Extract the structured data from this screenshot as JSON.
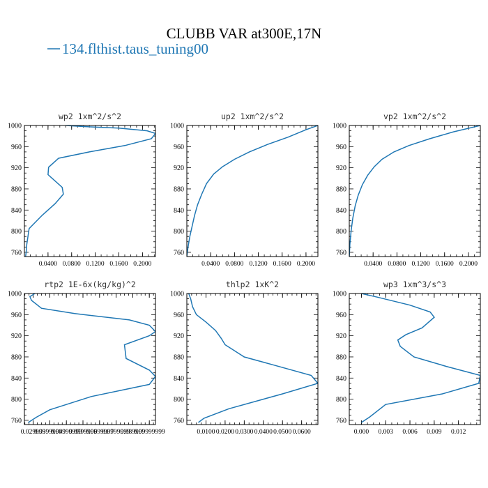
{
  "figure": {
    "title": "CLUBB VAR at300E,17N",
    "legend_label": "134.flthist.taus_tuning00",
    "line_color": "#1f77b4"
  },
  "chart_data": [
    {
      "type": "line",
      "title": "wp2  1xm^2/s^2",
      "xlim": [
        0.0,
        0.222
      ],
      "ylim": [
        1000,
        752
      ],
      "y_inverted": true,
      "yticks": [
        760,
        800,
        840,
        880,
        920,
        960,
        1000
      ],
      "xticks": [
        0.04,
        0.08,
        0.12,
        0.16,
        0.2
      ],
      "xtick_labels": [
        "0.0400",
        "0.0800",
        "0.1200",
        "0.1600",
        "0.2000"
      ],
      "series": [
        {
          "x": [
            0.002,
            0.003,
            0.004,
            0.008,
            0.03,
            0.052,
            0.066,
            0.064,
            0.04,
            0.041,
            0.058,
            0.11,
            0.17,
            0.215,
            0.222,
            0.208,
            0.16,
            0.1,
            0.07
          ],
          "y": [
            752,
            760,
            775,
            805,
            830,
            852,
            870,
            883,
            907,
            921,
            938,
            950,
            962,
            975,
            985,
            990,
            995,
            998,
            1000
          ]
        }
      ]
    },
    {
      "type": "line",
      "title": "up2  1xm^2/s^2",
      "xlim": [
        0.0,
        0.22
      ],
      "ylim": [
        1000,
        752
      ],
      "y_inverted": true,
      "yticks": [
        760,
        800,
        840,
        880,
        920,
        960,
        1000
      ],
      "xticks": [
        0.04,
        0.08,
        0.12,
        0.16,
        0.2
      ],
      "xtick_labels": [
        "0.0400",
        "0.0800",
        "0.1200",
        "0.1600",
        "0.2000"
      ],
      "series": [
        {
          "x": [
            0.0,
            0.002,
            0.005,
            0.009,
            0.013,
            0.018,
            0.025,
            0.033,
            0.045,
            0.06,
            0.08,
            0.105,
            0.135,
            0.17,
            0.2,
            0.22
          ],
          "y": [
            752,
            770,
            790,
            810,
            830,
            850,
            870,
            890,
            908,
            922,
            936,
            950,
            964,
            978,
            992,
            1000
          ]
        }
      ]
    },
    {
      "type": "line",
      "title": "vp2  1xm^2/s^2",
      "xlim": [
        0.0,
        0.22
      ],
      "ylim": [
        1000,
        752
      ],
      "y_inverted": true,
      "yticks": [
        760,
        800,
        840,
        880,
        920,
        960,
        1000
      ],
      "xticks": [
        0.04,
        0.08,
        0.12,
        0.16,
        0.2
      ],
      "xtick_labels": [
        "0.0400",
        "0.0800",
        "0.1200",
        "0.1600",
        "0.2000"
      ],
      "series": [
        {
          "x": [
            0.0,
            0.001,
            0.003,
            0.006,
            0.01,
            0.015,
            0.022,
            0.031,
            0.042,
            0.055,
            0.075,
            0.1,
            0.135,
            0.175,
            0.22
          ],
          "y": [
            752,
            775,
            800,
            825,
            848,
            868,
            888,
            906,
            922,
            936,
            950,
            962,
            975,
            988,
            1000
          ]
        }
      ]
    },
    {
      "type": "line",
      "title": "rtp2  1E-6x(kg/kg)^2",
      "xlim": [
        0.0247,
        0.1037
      ],
      "ylim": [
        1000,
        752
      ],
      "y_inverted": true,
      "yticks": [
        760,
        800,
        840,
        880,
        920,
        960,
        1000
      ],
      "xticks": [
        0.03,
        0.04,
        0.05,
        0.06,
        0.07,
        0.08,
        0.09,
        0.1
      ],
      "xtick_labels": [
        "0.029999",
        "0.03999999",
        "0.04999999",
        "0.0599999",
        "0.0699999",
        "0.0799999",
        "0.089999",
        "0.09999999"
      ],
      "series": [
        {
          "x": [
            0.027,
            0.032,
            0.04,
            0.065,
            0.1,
            0.1037,
            0.1,
            0.086,
            0.085,
            0.1,
            0.1037,
            0.1,
            0.088,
            0.055,
            0.035,
            0.029,
            0.028,
            0.031
          ],
          "y": [
            756,
            766,
            780,
            805,
            828,
            843,
            855,
            877,
            903,
            920,
            928,
            940,
            950,
            962,
            972,
            987,
            994,
            1000
          ]
        }
      ]
    },
    {
      "type": "line",
      "title": "thlp2  1xK^2",
      "xlim": [
        0.0,
        0.0685
      ],
      "ylim": [
        1000,
        752
      ],
      "y_inverted": true,
      "yticks": [
        760,
        800,
        840,
        880,
        920,
        960,
        1000
      ],
      "xticks": [
        0.01,
        0.02,
        0.03,
        0.04,
        0.05,
        0.06
      ],
      "xtick_labels": [
        "0.0100",
        "0.0200",
        "0.0300",
        "0.0400",
        "0.0500",
        "0.0600"
      ],
      "series": [
        {
          "x": [
            0.006,
            0.009,
            0.022,
            0.05,
            0.0685,
            0.065,
            0.045,
            0.03,
            0.02,
            0.018,
            0.015,
            0.01,
            0.005,
            0.003,
            0.002,
            0.001
          ],
          "y": [
            756,
            764,
            782,
            810,
            830,
            845,
            865,
            880,
            903,
            915,
            930,
            946,
            960,
            975,
            990,
            1000
          ]
        }
      ]
    },
    {
      "type": "line",
      "title": "wp3  1xm^3/s^3",
      "xlim": [
        -0.0015,
        0.0147
      ],
      "ylim": [
        1000,
        752
      ],
      "y_inverted": true,
      "yticks": [
        760,
        800,
        840,
        880,
        920,
        960,
        1000
      ],
      "xticks": [
        0.0,
        0.003,
        0.006,
        0.009,
        0.012
      ],
      "xtick_labels": [
        "0.000",
        "0.003",
        "0.006",
        "0.009",
        "0.012"
      ],
      "series": [
        {
          "x": [
            0.0,
            0.001,
            0.003,
            0.01,
            0.0145,
            0.0147,
            0.0105,
            0.0065,
            0.0048,
            0.0045,
            0.0055,
            0.0075,
            0.009,
            0.0085,
            0.006,
            0.002,
            0.0
          ],
          "y": [
            756,
            766,
            790,
            810,
            830,
            845,
            862,
            880,
            900,
            912,
            922,
            935,
            955,
            965,
            978,
            993,
            1000
          ]
        }
      ]
    }
  ]
}
